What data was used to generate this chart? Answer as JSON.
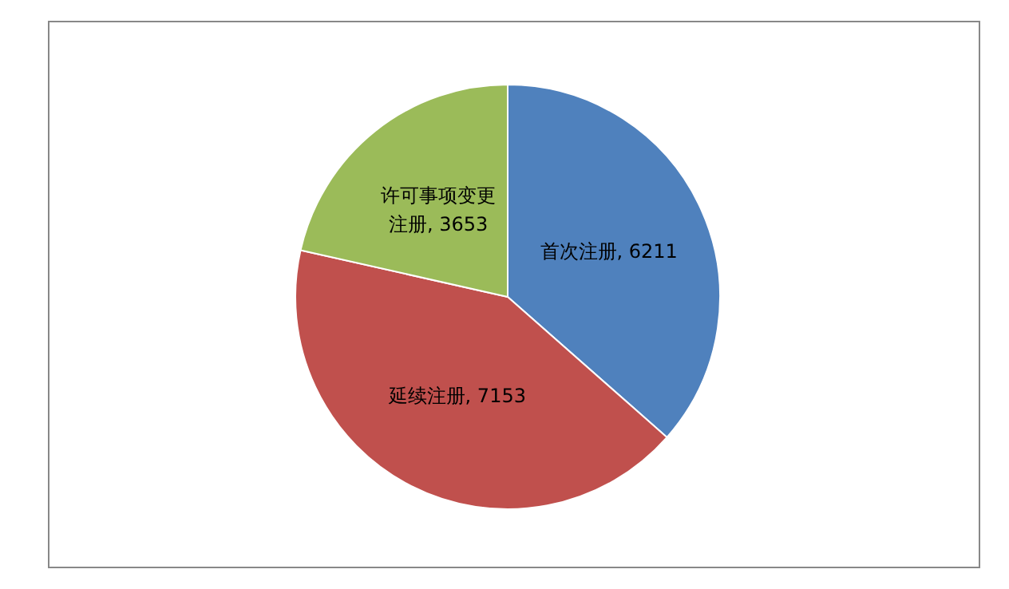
{
  "chart_data": {
    "type": "pie",
    "categories": [
      "首次注册",
      "延续注册",
      "许可事项变更注册"
    ],
    "values": [
      6211,
      7153,
      3653
    ],
    "value_labels": [
      "6211",
      "7153",
      "3653"
    ],
    "colors": [
      "#4f81bd",
      "#c0504d",
      "#9bbb59"
    ],
    "legend": false
  }
}
